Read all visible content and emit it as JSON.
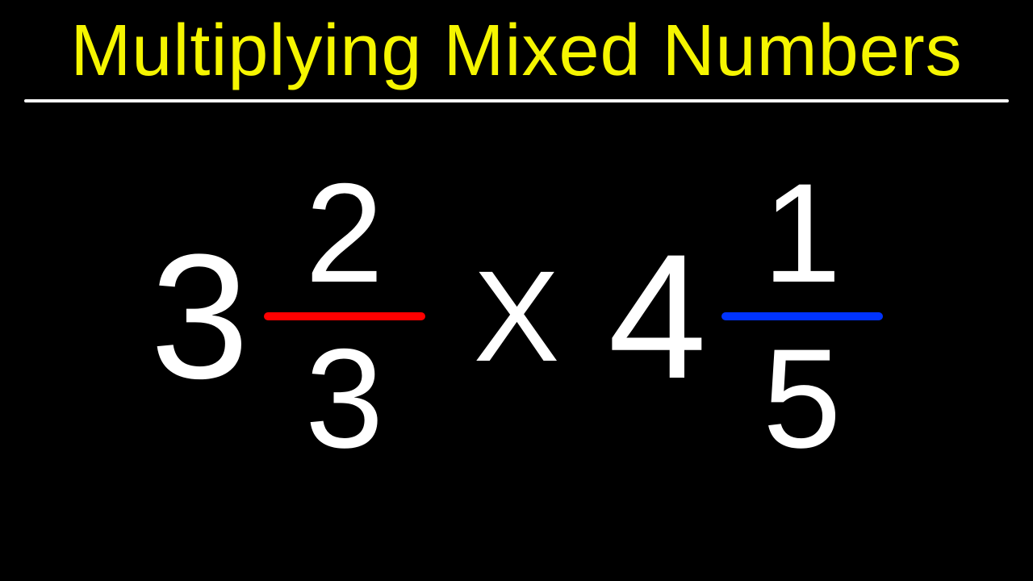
{
  "title": {
    "text": "Multiplying Mixed Numbers",
    "color": "#f5f500",
    "fontsize": 90
  },
  "underline": {
    "color": "#ffffff"
  },
  "background_color": "#000000",
  "equation": {
    "text_color": "#ffffff",
    "operator": "X",
    "left": {
      "whole": "3",
      "numerator": "2",
      "denominator": "3",
      "bar_color": "#ff0000"
    },
    "right": {
      "whole": "4",
      "numerator": "1",
      "denominator": "5",
      "bar_color": "#0033ff"
    }
  }
}
